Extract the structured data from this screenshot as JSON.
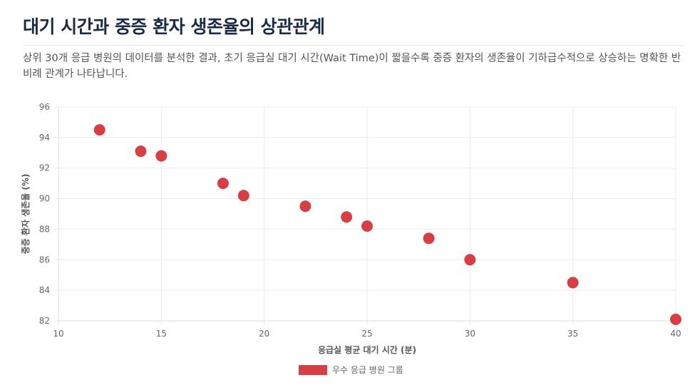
{
  "page": {
    "title": "대기 시간과 중증 환자 생존율의 상관관계",
    "description": "상위 30개 응급 병원의 데이터를 분석한 결과, 초기 응급실 대기 시간(Wait Time)이 짧을수록 중증 환자의 생존율이 기하급수적으로 상승하는 명확한 반비례 관계가 나타납니다."
  },
  "colors": {
    "point": "#d64045",
    "grid": "#ebebeb",
    "title": "#1c2b45"
  },
  "chart_data": {
    "type": "scatter",
    "title": "",
    "xlabel": "응급실 평균 대기 시간 (분)",
    "ylabel": "중증 환자 생존율 (%)",
    "xlim": [
      10,
      40
    ],
    "ylim": [
      82,
      96
    ],
    "xticks": [
      10,
      15,
      20,
      25,
      30,
      35,
      40
    ],
    "yticks": [
      82,
      84,
      86,
      88,
      90,
      92,
      94,
      96
    ],
    "grid": true,
    "legend_position": "bottom-center",
    "series": [
      {
        "name": "우수 응급 병원 그룹",
        "color": "#d64045",
        "points": [
          {
            "x": 12,
            "y": 94.5
          },
          {
            "x": 14,
            "y": 93.1
          },
          {
            "x": 15,
            "y": 92.8
          },
          {
            "x": 18,
            "y": 91.0
          },
          {
            "x": 19,
            "y": 90.2
          },
          {
            "x": 22,
            "y": 89.5
          },
          {
            "x": 24,
            "y": 88.8
          },
          {
            "x": 25,
            "y": 88.2
          },
          {
            "x": 28,
            "y": 87.4
          },
          {
            "x": 30,
            "y": 86.0
          },
          {
            "x": 35,
            "y": 84.5
          },
          {
            "x": 40,
            "y": 82.1
          }
        ]
      }
    ]
  }
}
